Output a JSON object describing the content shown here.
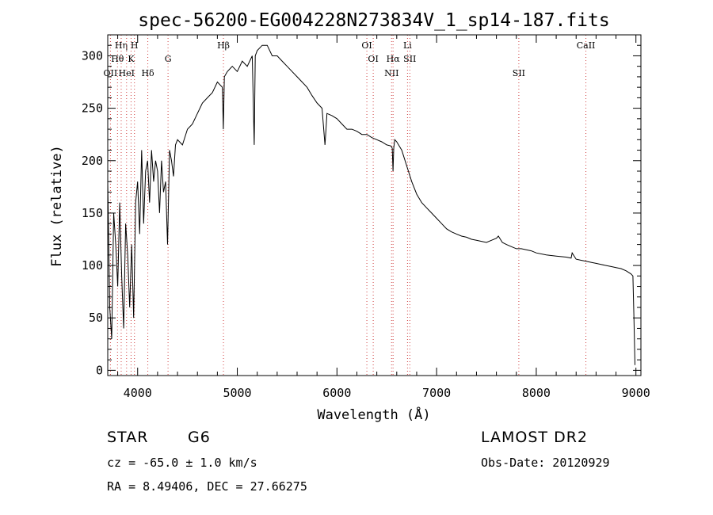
{
  "chart_data": {
    "type": "line",
    "title": "spec-56200-EG004228N273834V_1_sp14-187.fits",
    "xlabel": "Wavelength (Å)",
    "ylabel": "Flux (relative)",
    "xlim": [
      3700,
      9050
    ],
    "ylim": [
      -5,
      320
    ],
    "xticks": [
      4000,
      5000,
      6000,
      7000,
      8000,
      9000
    ],
    "yticks": [
      0,
      50,
      100,
      150,
      200,
      250,
      300
    ],
    "grid": false,
    "line_color": "#000000",
    "marker_color": "#d04040",
    "line_markers": [
      {
        "label": "OII",
        "wavelength": 3727,
        "row": 2
      },
      {
        "label": "Hθ",
        "wavelength": 3798,
        "row": 1
      },
      {
        "label": "Hη",
        "wavelength": 3835,
        "row": 0
      },
      {
        "label": "HeI",
        "wavelength": 3889,
        "row": 2
      },
      {
        "label": "K",
        "wavelength": 3934,
        "row": 1
      },
      {
        "label": "H",
        "wavelength": 3968,
        "row": 0
      },
      {
        "label": "Hδ",
        "wavelength": 4102,
        "row": 2
      },
      {
        "label": "G",
        "wavelength": 4305,
        "row": 1
      },
      {
        "label": "Hβ",
        "wavelength": 4861,
        "row": 0
      },
      {
        "label": "OI",
        "wavelength": 6300,
        "row": 0
      },
      {
        "label": "OI",
        "wavelength": 6364,
        "row": 1
      },
      {
        "label": "NII",
        "wavelength": 6548,
        "row": 2
      },
      {
        "label": "Hα",
        "wavelength": 6563,
        "row": 1
      },
      {
        "label": "Li",
        "wavelength": 6708,
        "row": 0
      },
      {
        "label": "SII",
        "wavelength": 6731,
        "row": 1
      },
      {
        "label": "SII",
        "wavelength": 7825,
        "row": 2
      },
      {
        "label": "CaII",
        "wavelength": 8498,
        "row": 0
      }
    ],
    "series": [
      {
        "x": [
          3700,
          3720,
          3740,
          3760,
          3780,
          3800,
          3820,
          3840,
          3860,
          3880,
          3900,
          3920,
          3940,
          3960,
          3980,
          4000,
          4020,
          4040,
          4060,
          4080,
          4100,
          4120,
          4140,
          4160,
          4180,
          4200,
          4220,
          4240,
          4260,
          4280,
          4300,
          4320,
          4340,
          4360,
          4380,
          4400,
          4450,
          4500,
          4550,
          4600,
          4650,
          4700,
          4750,
          4800,
          4850,
          4860,
          4870,
          4900,
          4950,
          5000,
          5050,
          5100,
          5150,
          5170,
          5180,
          5200,
          5250,
          5300,
          5350,
          5400,
          5450,
          5500,
          5550,
          5600,
          5650,
          5700,
          5750,
          5800,
          5850,
          5880,
          5890,
          5900,
          5950,
          6000,
          6050,
          6100,
          6150,
          6200,
          6250,
          6300,
          6350,
          6400,
          6450,
          6500,
          6540,
          6555,
          6563,
          6570,
          6580,
          6600,
          6650,
          6700,
          6750,
          6800,
          6850,
          6900,
          6950,
          7000,
          7050,
          7100,
          7150,
          7200,
          7250,
          7300,
          7350,
          7400,
          7450,
          7500,
          7550,
          7600,
          7620,
          7640,
          7660,
          7700,
          7750,
          7800,
          7850,
          7900,
          7950,
          8000,
          8100,
          8200,
          8300,
          8350,
          8360,
          8400,
          8450,
          8500,
          8550,
          8600,
          8650,
          8700,
          8750,
          8800,
          8850,
          8900,
          8950,
          8970,
          8980,
          8990
        ],
        "y": [
          180,
          60,
          30,
          150,
          120,
          80,
          160,
          90,
          40,
          140,
          110,
          60,
          120,
          50,
          160,
          180,
          130,
          210,
          140,
          190,
          200,
          160,
          210,
          180,
          200,
          190,
          150,
          200,
          170,
          180,
          120,
          210,
          200,
          185,
          215,
          220,
          215,
          230,
          235,
          245,
          255,
          260,
          265,
          275,
          270,
          230,
          280,
          285,
          290,
          285,
          295,
          290,
          300,
          215,
          300,
          305,
          310,
          310,
          300,
          300,
          295,
          290,
          285,
          280,
          275,
          270,
          262,
          255,
          250,
          215,
          230,
          245,
          243,
          240,
          235,
          230,
          230,
          228,
          225,
          225,
          222,
          220,
          218,
          215,
          214,
          212,
          190,
          212,
          220,
          218,
          210,
          195,
          180,
          168,
          160,
          155,
          150,
          145,
          140,
          135,
          132,
          130,
          128,
          127,
          125,
          124,
          123,
          122,
          124,
          126,
          128,
          125,
          122,
          120,
          118,
          116,
          116,
          115,
          114,
          112,
          110,
          109,
          108,
          107,
          112,
          106,
          105,
          104,
          103,
          102,
          101,
          100,
          99,
          98,
          97,
          95,
          92,
          90,
          50,
          5
        ]
      }
    ],
    "info": {
      "object_class": "STAR",
      "subclass": "G6",
      "survey": "LAMOST DR2",
      "redshift": "cz =  -65.0 ± 1.0 km/s",
      "obs_date": "Obs-Date: 20120929",
      "coords": "RA =    8.49406, DEC =   27.66275"
    }
  }
}
